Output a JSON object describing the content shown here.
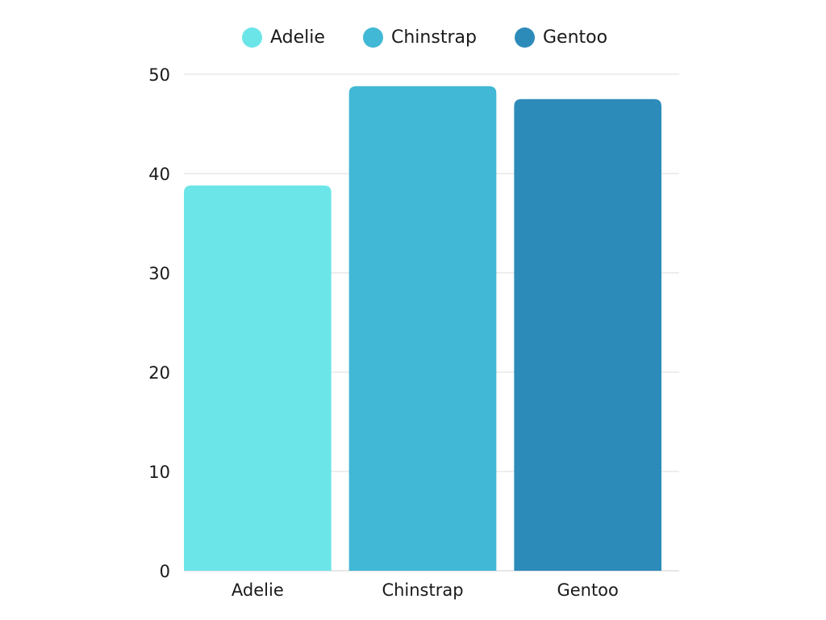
{
  "chart_data": {
    "type": "bar",
    "categories": [
      "Adelie",
      "Chinstrap",
      "Gentoo"
    ],
    "values": [
      38.8,
      48.8,
      47.5
    ],
    "colors": [
      "#6CE5E8",
      "#41B8D5",
      "#2D8BBA"
    ],
    "ylim": [
      0,
      50
    ],
    "yticks": [
      0,
      10,
      20,
      30,
      40,
      50
    ],
    "grid": true,
    "legend": {
      "position": "top-center",
      "entries": [
        "Adelie",
        "Chinstrap",
        "Gentoo"
      ]
    },
    "title": "",
    "xlabel": "",
    "ylabel": ""
  }
}
